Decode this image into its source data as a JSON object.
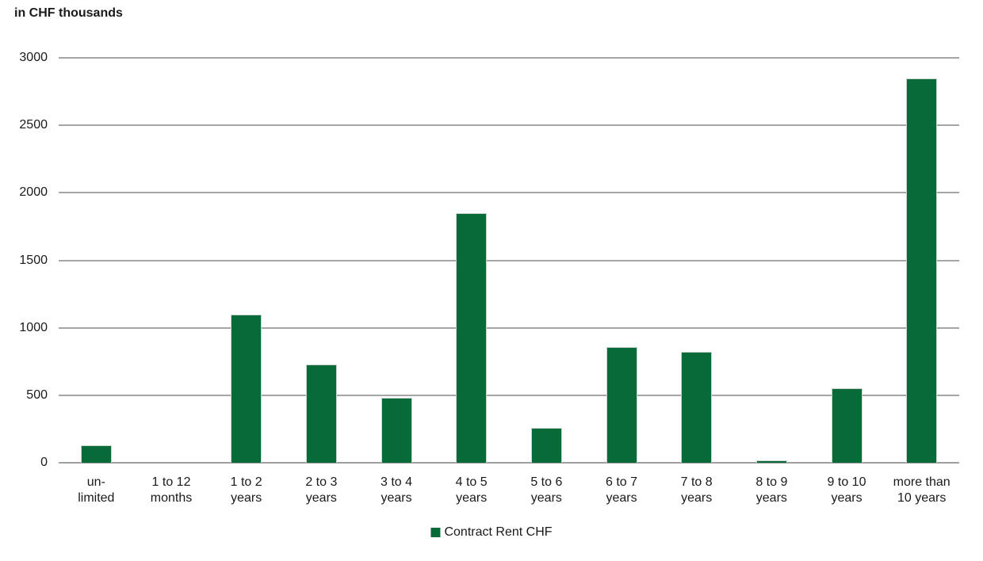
{
  "title": "in CHF thousands",
  "legend": {
    "label": "Contract Rent CHF"
  },
  "colors": {
    "bar": "#076a38",
    "gridline": "#a6a6a6",
    "text": "#1a1a1a"
  },
  "chart_data": {
    "type": "bar",
    "title": "in CHF thousands",
    "categories": [
      "un-\nlimited",
      "1 to 12\nmonths",
      "1 to 2\nyears",
      "2 to 3\nyears",
      "3 to 4\nyears",
      "4 to 5\nyears",
      "5 to 6\nyears",
      "6 to 7\nyears",
      "7 to 8\nyears",
      "8 to 9\nyears",
      "9 to 10\nyears",
      "more than\n10 years"
    ],
    "series": [
      {
        "name": "Contract Rent CHF",
        "values": [
          130,
          0,
          1100,
          730,
          480,
          1850,
          260,
          860,
          820,
          20,
          550,
          2850
        ]
      }
    ],
    "xlabel": "",
    "ylabel": "in CHF thousands",
    "ylim": [
      0,
      3000
    ],
    "yticks": [
      0,
      500,
      1000,
      1500,
      2000,
      2500,
      3000
    ],
    "grid": "horizontal",
    "legend_position": "bottom",
    "bar_color": "#076a38"
  }
}
